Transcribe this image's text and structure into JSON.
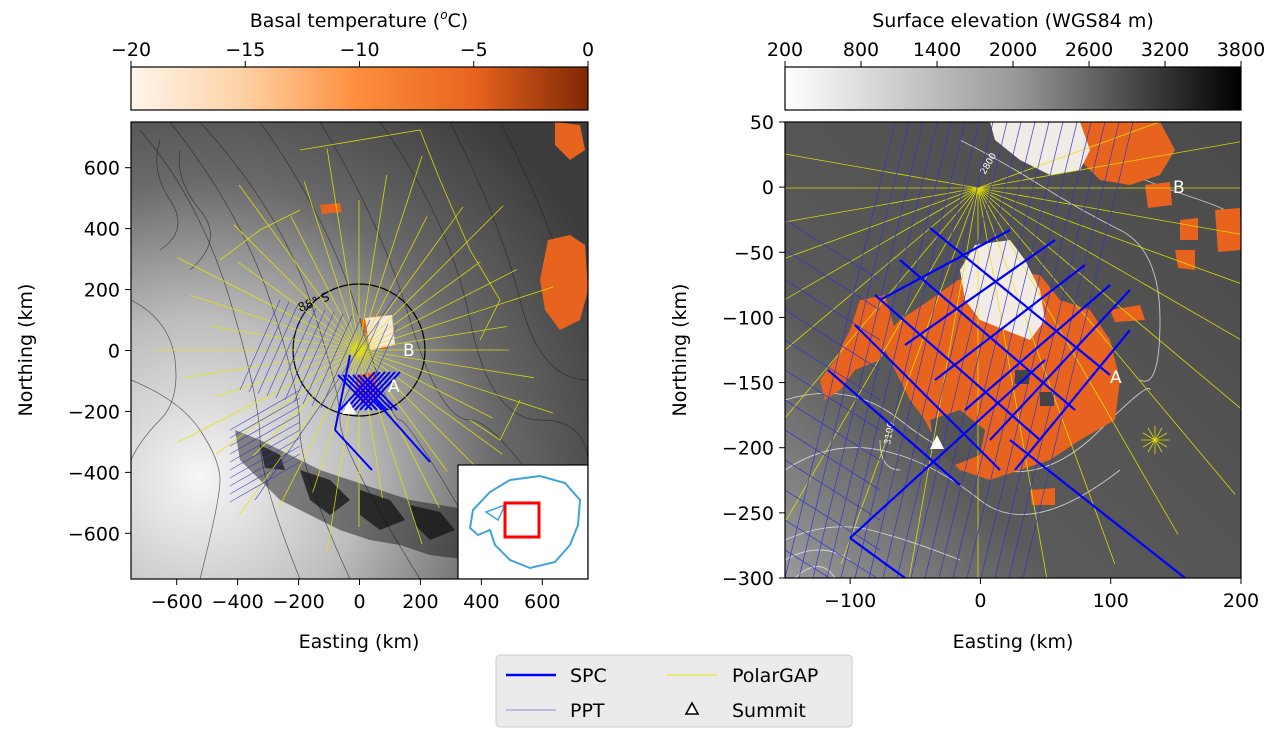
{
  "chart_data": [
    {
      "type": "heatmap",
      "colorbar": {
        "label": "Basal temperature (°C)",
        "label_main": "Basal temperature (",
        "label_sup": "o",
        "label_end": "C)",
        "ticks": [
          "−20",
          "−15",
          "−10",
          "−5",
          "0"
        ],
        "range": [
          -20,
          0
        ]
      },
      "xlabel": "Easting (km)",
      "ylabel": "Northing (km)",
      "xlim": [
        -750,
        750
      ],
      "ylim": [
        -750,
        750
      ],
      "x_ticks": [
        "−600",
        "−400",
        "−200",
        "0",
        "200",
        "400",
        "600"
      ],
      "y_ticks": [
        "600",
        "400",
        "200",
        "0",
        "−200",
        "−400",
        "−600"
      ],
      "annotations": [
        "88° S",
        "A",
        "B"
      ],
      "inset": "Antarctica map with red box marking study area"
    },
    {
      "type": "heatmap",
      "colorbar": {
        "label": "Surface elevation (WGS84 m)",
        "ticks": [
          "200",
          "800",
          "1400",
          "2000",
          "2600",
          "3200",
          "3800"
        ],
        "range": [
          200,
          3800
        ]
      },
      "xlabel": "Easting (km)",
      "ylabel": "Northing (km)",
      "xlim": [
        -150,
        200
      ],
      "ylim": [
        -300,
        50
      ],
      "x_ticks": [
        "−100",
        "0",
        "100",
        "200"
      ],
      "y_ticks": [
        "50",
        "0",
        "−50",
        "−100",
        "−150",
        "−200",
        "−250",
        "−300"
      ],
      "annotations": [
        "A",
        "B",
        "2800",
        "3100"
      ]
    }
  ],
  "legend": {
    "items": [
      {
        "name": "SPC",
        "color": "#0000ff",
        "style": "thick-line"
      },
      {
        "name": "PolarGAP",
        "color": "#e6e600",
        "style": "thin-line"
      },
      {
        "name": "PPT",
        "color": "#3333cc",
        "style": "hairline"
      },
      {
        "name": "Summit",
        "style": "triangle-marker"
      }
    ],
    "placement": "bottom-center"
  },
  "colors": {
    "warm": "#e8641e",
    "spc": "#0000ff",
    "polargap": "#e6e600",
    "inset_red": "#ff0000",
    "inset_coast": "#3fa3d8"
  }
}
